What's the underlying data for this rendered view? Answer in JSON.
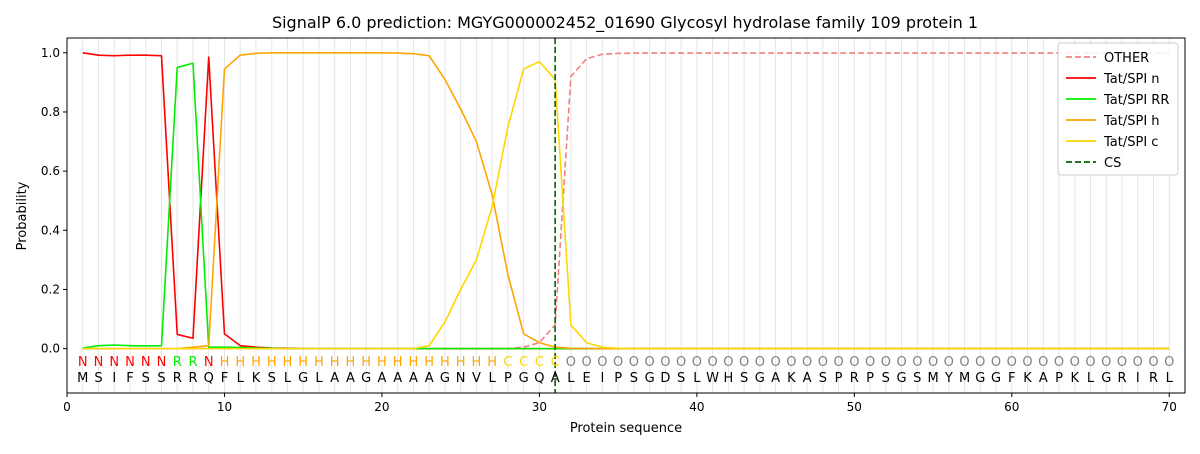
{
  "chart_data": {
    "type": "line",
    "title": "SignalP 6.0 prediction: MGYG000002452_01690 Glycosyl hydrolase family 109 protein 1",
    "xlabel": "Protein sequence",
    "ylabel": "Probability",
    "xlim": [
      0,
      71
    ],
    "ylim": [
      -0.15,
      1.05
    ],
    "x_ticks": [
      0,
      10,
      20,
      30,
      40,
      50,
      60,
      70
    ],
    "y_ticks": [
      0.0,
      0.2,
      0.4,
      0.6,
      0.8,
      1.0
    ],
    "x_tick_labels": [
      "0",
      "10",
      "20",
      "30",
      "40",
      "50",
      "60",
      "70"
    ],
    "y_tick_labels": [
      "0.0",
      "0.2",
      "0.4",
      "0.6",
      "0.8",
      "1.0"
    ],
    "grid": "vertical lines at each residue",
    "legend_position": "top-right",
    "sequence": [
      "M",
      "S",
      "I",
      "F",
      "S",
      "S",
      "R",
      "R",
      "Q",
      "F",
      "L",
      "K",
      "S",
      "L",
      "G",
      "L",
      "A",
      "A",
      "G",
      "A",
      "A",
      "A",
      "A",
      "G",
      "N",
      "V",
      "L",
      "P",
      "G",
      "Q",
      "A",
      "L",
      "E",
      "I",
      "P",
      "S",
      "G",
      "D",
      "S",
      "L",
      "W",
      "H",
      "S",
      "G",
      "A",
      "K",
      "A",
      "S",
      "P",
      "R",
      "P",
      "S",
      "G",
      "S",
      "M",
      "Y",
      "M",
      "G",
      "G",
      "F",
      "K",
      "A",
      "P",
      "K",
      "L",
      "G",
      "R",
      "I",
      "R",
      "L"
    ],
    "region_labels": [
      "N",
      "N",
      "N",
      "N",
      "N",
      "N",
      "R",
      "R",
      "N",
      "H",
      "H",
      "H",
      "H",
      "H",
      "H",
      "H",
      "H",
      "H",
      "H",
      "H",
      "H",
      "H",
      "H",
      "H",
      "H",
      "H",
      "H",
      "C",
      "C",
      "C",
      "C",
      "O",
      "O",
      "O",
      "O",
      "O",
      "O",
      "O",
      "O",
      "O",
      "O",
      "O",
      "O",
      "O",
      "O",
      "O",
      "O",
      "O",
      "O",
      "O",
      "O",
      "O",
      "O",
      "O",
      "O",
      "O",
      "O",
      "O",
      "O",
      "O",
      "O",
      "O",
      "O",
      "O",
      "O",
      "O",
      "O",
      "O",
      "O",
      "O"
    ],
    "region_colors": {
      "N": "#ff0000",
      "R": "#00ee00",
      "H": "#ffa500",
      "C": "#ffd700",
      "O": "#808080"
    },
    "cleavage_site": 31,
    "series": [
      {
        "name": "OTHER",
        "color": "#f08080",
        "style": "dashed",
        "values": [
          0,
          0,
          0,
          0,
          0,
          0,
          0,
          0,
          0,
          0,
          0,
          0,
          0,
          0,
          0,
          0,
          0,
          0,
          0,
          0,
          0,
          0,
          0,
          0,
          0,
          0,
          0,
          0,
          0.005,
          0.02,
          0.08,
          0.92,
          0.98,
          0.995,
          0.998,
          0.999,
          0.999,
          0.999,
          0.999,
          0.999,
          0.999,
          0.999,
          0.999,
          0.999,
          0.999,
          0.999,
          0.999,
          0.999,
          0.999,
          0.999,
          0.999,
          0.999,
          0.999,
          0.999,
          0.999,
          0.999,
          0.999,
          0.999,
          0.999,
          0.999,
          0.999,
          0.999,
          0.999,
          0.999,
          0.999,
          0.999,
          0.999,
          0.999,
          0.999,
          0.999
        ]
      },
      {
        "name": "Tat/SPI n",
        "color": "#ff0000",
        "style": "solid",
        "values": [
          1.0,
          0.992,
          0.99,
          0.992,
          0.992,
          0.99,
          0.048,
          0.035,
          0.985,
          0.05,
          0.01,
          0.005,
          0.002,
          0.001,
          0,
          0,
          0,
          0,
          0,
          0,
          0,
          0,
          0,
          0,
          0,
          0,
          0,
          0,
          0,
          0,
          0,
          0,
          0,
          0,
          0,
          0,
          0,
          0,
          0,
          0,
          0,
          0,
          0,
          0,
          0,
          0,
          0,
          0,
          0,
          0,
          0,
          0,
          0,
          0,
          0,
          0,
          0,
          0,
          0,
          0,
          0,
          0,
          0,
          0,
          0,
          0,
          0,
          0,
          0,
          0
        ]
      },
      {
        "name": "Tat/SPI RR",
        "color": "#00ee00",
        "style": "solid",
        "values": [
          0.002,
          0.01,
          0.012,
          0.01,
          0.009,
          0.01,
          0.95,
          0.965,
          0.005,
          0.005,
          0.004,
          0.002,
          0.001,
          0,
          0,
          0,
          0,
          0,
          0,
          0,
          0,
          0,
          0,
          0,
          0,
          0,
          0,
          0,
          0,
          0,
          0,
          0,
          0,
          0,
          0,
          0,
          0,
          0,
          0,
          0,
          0,
          0,
          0,
          0,
          0,
          0,
          0,
          0,
          0,
          0,
          0,
          0,
          0,
          0,
          0,
          0,
          0,
          0,
          0,
          0,
          0,
          0,
          0,
          0,
          0,
          0,
          0,
          0,
          0,
          0
        ]
      },
      {
        "name": "Tat/SPI h",
        "color": "#ffa500",
        "style": "solid",
        "values": [
          0,
          0,
          0,
          0,
          0,
          0,
          0,
          0.005,
          0.01,
          0.945,
          0.992,
          0.998,
          1.0,
          1.0,
          1.0,
          1.0,
          1.0,
          1.0,
          1.0,
          1.0,
          0.999,
          0.997,
          0.99,
          0.91,
          0.81,
          0.7,
          0.52,
          0.25,
          0.05,
          0.02,
          0.005,
          0.001,
          0,
          0,
          0,
          0,
          0,
          0,
          0,
          0,
          0,
          0,
          0,
          0,
          0,
          0,
          0,
          0,
          0,
          0,
          0,
          0,
          0,
          0,
          0,
          0,
          0,
          0,
          0,
          0,
          0,
          0,
          0,
          0,
          0,
          0,
          0,
          0,
          0,
          0
        ]
      },
      {
        "name": "Tat/SPI c",
        "color": "#ffd700",
        "style": "solid",
        "values": [
          0,
          0,
          0,
          0,
          0,
          0,
          0,
          0,
          0,
          0,
          0,
          0,
          0,
          0,
          0,
          0,
          0,
          0,
          0,
          0,
          0,
          0,
          0.01,
          0.09,
          0.2,
          0.3,
          0.48,
          0.75,
          0.945,
          0.97,
          0.91,
          0.08,
          0.02,
          0.005,
          0.001,
          0,
          0,
          0,
          0,
          0,
          0,
          0,
          0,
          0,
          0,
          0,
          0,
          0,
          0,
          0,
          0,
          0,
          0,
          0,
          0,
          0,
          0,
          0,
          0,
          0,
          0,
          0,
          0,
          0,
          0,
          0,
          0,
          0,
          0,
          0
        ]
      },
      {
        "name": "CS",
        "color": "#006400",
        "style": "dashed-vertical",
        "values": []
      }
    ]
  }
}
